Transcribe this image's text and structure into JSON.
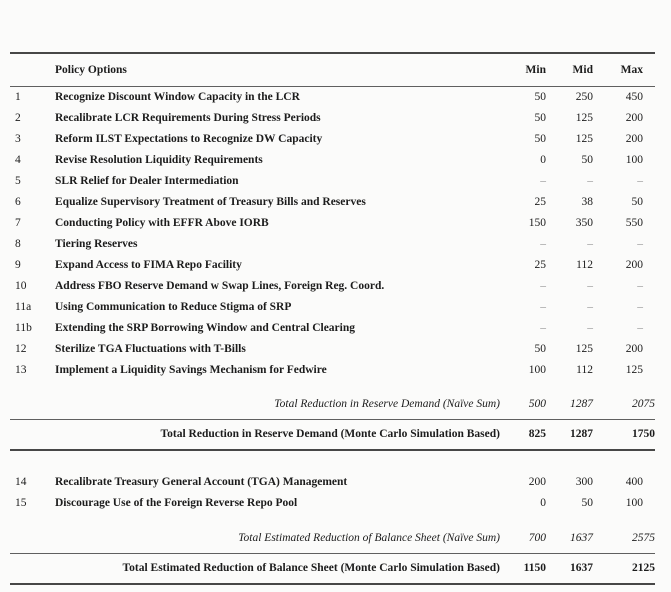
{
  "table": {
    "header": {
      "number": "",
      "policy": "Policy Options",
      "min": "Min",
      "mid": "Mid",
      "max": "Max"
    },
    "rows1": [
      {
        "num": "1",
        "label": "Recognize Discount Window Capacity in the LCR",
        "min": "50",
        "mid": "250",
        "max": "450"
      },
      {
        "num": "2",
        "label": "Recalibrate LCR Requirements During Stress Periods",
        "min": "50",
        "mid": "125",
        "max": "200"
      },
      {
        "num": "3",
        "label": "Reform ILST Expectations to Recognize DW Capacity",
        "min": "50",
        "mid": "125",
        "max": "200"
      },
      {
        "num": "4",
        "label": "Revise Resolution Liquidity Requirements",
        "min": "0",
        "mid": "50",
        "max": "100"
      },
      {
        "num": "5",
        "label": "SLR Relief for Dealer Intermediation",
        "min": "–",
        "mid": "–",
        "max": "–"
      },
      {
        "num": "6",
        "label": "Equalize Supervisory Treatment of Treasury Bills and Reserves",
        "min": "25",
        "mid": "38",
        "max": "50"
      },
      {
        "num": "7",
        "label": "Conducting Policy with EFFR Above IORB",
        "min": "150",
        "mid": "350",
        "max": "550"
      },
      {
        "num": "8",
        "label": "Tiering Reserves",
        "min": "–",
        "mid": "–",
        "max": "–"
      },
      {
        "num": "9",
        "label": "Expand Access to FIMA Repo Facility",
        "min": "25",
        "mid": "112",
        "max": "200"
      },
      {
        "num": "10",
        "label": "Address FBO Reserve Demand w Swap Lines, Foreign Reg. Coord.",
        "min": "–",
        "mid": "–",
        "max": "–"
      },
      {
        "num": "11a",
        "label": "Using Communication to Reduce Stigma of SRP",
        "min": "–",
        "mid": "–",
        "max": "–"
      },
      {
        "num": "11b",
        "label": "Extending the SRP Borrowing Window and Central Clearing",
        "min": "–",
        "mid": "–",
        "max": "–"
      },
      {
        "num": "12",
        "label": "Sterilize TGA Fluctuations with T-Bills",
        "min": "50",
        "mid": "125",
        "max": "200"
      },
      {
        "num": "13",
        "label": "Implement a Liquidity Savings Mechanism for Fedwire",
        "min": "100",
        "mid": "112",
        "max": "125"
      }
    ],
    "reserve_naive": {
      "label": "Total Reduction in Reserve Demand (Naïve Sum)",
      "min": "500",
      "mid": "1287",
      "max": "2075"
    },
    "reserve_mc": {
      "label": "Total Reduction in Reserve Demand (Monte Carlo Simulation Based)",
      "min": "825",
      "mid": "1287",
      "max": "1750"
    },
    "rows2": [
      {
        "num": "14",
        "label": "Recalibrate Treasury General Account (TGA) Management",
        "min": "200",
        "mid": "300",
        "max": "400"
      },
      {
        "num": "15",
        "label": "Discourage Use of the Foreign Reverse Repo Pool",
        "min": "0",
        "mid": "50",
        "max": "100"
      }
    ],
    "balance_naive": {
      "label": "Total Estimated Reduction of Balance Sheet (Naïve Sum)",
      "min": "700",
      "mid": "1637",
      "max": "2575"
    },
    "balance_mc": {
      "label": "Total Estimated Reduction of Balance Sheet (Monte Carlo Simulation Based)",
      "min": "1150",
      "mid": "1637",
      "max": "2125"
    }
  },
  "colors": {
    "text": "#1c1c1c",
    "rule_heavy": "#474747",
    "rule_light": "#5f5f5f",
    "dash": "#8f8f8f",
    "background": "#fbfbfa"
  }
}
